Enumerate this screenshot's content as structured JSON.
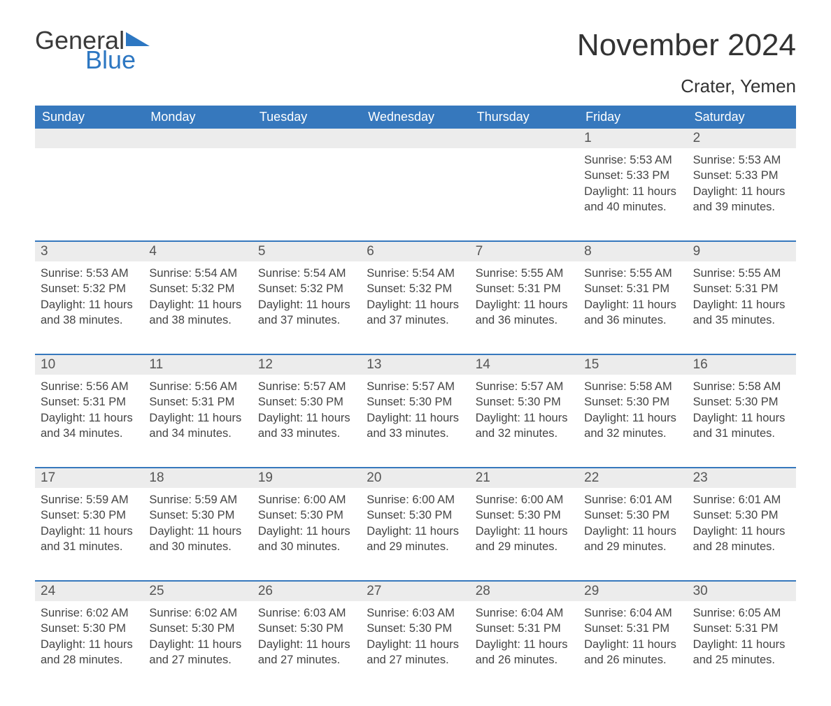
{
  "logo": {
    "general": "General",
    "blue": "Blue"
  },
  "title": "November 2024",
  "location": "Crater, Yemen",
  "colors": {
    "header_bg": "#3678bd",
    "header_text": "#ffffff",
    "daynum_bg": "#ececec",
    "rule": "#3678bd",
    "logo_blue": "#2d77c2",
    "text": "#333333",
    "cell_text": "#444444"
  },
  "day_names": [
    "Sunday",
    "Monday",
    "Tuesday",
    "Wednesday",
    "Thursday",
    "Friday",
    "Saturday"
  ],
  "weeks": [
    {
      "nums": [
        "",
        "",
        "",
        "",
        "",
        "1",
        "2"
      ],
      "data": [
        null,
        null,
        null,
        null,
        null,
        {
          "sunrise": "5:53 AM",
          "sunset": "5:33 PM",
          "daylight": "11 hours and 40 minutes."
        },
        {
          "sunrise": "5:53 AM",
          "sunset": "5:33 PM",
          "daylight": "11 hours and 39 minutes."
        }
      ]
    },
    {
      "nums": [
        "3",
        "4",
        "5",
        "6",
        "7",
        "8",
        "9"
      ],
      "data": [
        {
          "sunrise": "5:53 AM",
          "sunset": "5:32 PM",
          "daylight": "11 hours and 38 minutes."
        },
        {
          "sunrise": "5:54 AM",
          "sunset": "5:32 PM",
          "daylight": "11 hours and 38 minutes."
        },
        {
          "sunrise": "5:54 AM",
          "sunset": "5:32 PM",
          "daylight": "11 hours and 37 minutes."
        },
        {
          "sunrise": "5:54 AM",
          "sunset": "5:32 PM",
          "daylight": "11 hours and 37 minutes."
        },
        {
          "sunrise": "5:55 AM",
          "sunset": "5:31 PM",
          "daylight": "11 hours and 36 minutes."
        },
        {
          "sunrise": "5:55 AM",
          "sunset": "5:31 PM",
          "daylight": "11 hours and 36 minutes."
        },
        {
          "sunrise": "5:55 AM",
          "sunset": "5:31 PM",
          "daylight": "11 hours and 35 minutes."
        }
      ]
    },
    {
      "nums": [
        "10",
        "11",
        "12",
        "13",
        "14",
        "15",
        "16"
      ],
      "data": [
        {
          "sunrise": "5:56 AM",
          "sunset": "5:31 PM",
          "daylight": "11 hours and 34 minutes."
        },
        {
          "sunrise": "5:56 AM",
          "sunset": "5:31 PM",
          "daylight": "11 hours and 34 minutes."
        },
        {
          "sunrise": "5:57 AM",
          "sunset": "5:30 PM",
          "daylight": "11 hours and 33 minutes."
        },
        {
          "sunrise": "5:57 AM",
          "sunset": "5:30 PM",
          "daylight": "11 hours and 33 minutes."
        },
        {
          "sunrise": "5:57 AM",
          "sunset": "5:30 PM",
          "daylight": "11 hours and 32 minutes."
        },
        {
          "sunrise": "5:58 AM",
          "sunset": "5:30 PM",
          "daylight": "11 hours and 32 minutes."
        },
        {
          "sunrise": "5:58 AM",
          "sunset": "5:30 PM",
          "daylight": "11 hours and 31 minutes."
        }
      ]
    },
    {
      "nums": [
        "17",
        "18",
        "19",
        "20",
        "21",
        "22",
        "23"
      ],
      "data": [
        {
          "sunrise": "5:59 AM",
          "sunset": "5:30 PM",
          "daylight": "11 hours and 31 minutes."
        },
        {
          "sunrise": "5:59 AM",
          "sunset": "5:30 PM",
          "daylight": "11 hours and 30 minutes."
        },
        {
          "sunrise": "6:00 AM",
          "sunset": "5:30 PM",
          "daylight": "11 hours and 30 minutes."
        },
        {
          "sunrise": "6:00 AM",
          "sunset": "5:30 PM",
          "daylight": "11 hours and 29 minutes."
        },
        {
          "sunrise": "6:00 AM",
          "sunset": "5:30 PM",
          "daylight": "11 hours and 29 minutes."
        },
        {
          "sunrise": "6:01 AM",
          "sunset": "5:30 PM",
          "daylight": "11 hours and 29 minutes."
        },
        {
          "sunrise": "6:01 AM",
          "sunset": "5:30 PM",
          "daylight": "11 hours and 28 minutes."
        }
      ]
    },
    {
      "nums": [
        "24",
        "25",
        "26",
        "27",
        "28",
        "29",
        "30"
      ],
      "data": [
        {
          "sunrise": "6:02 AM",
          "sunset": "5:30 PM",
          "daylight": "11 hours and 28 minutes."
        },
        {
          "sunrise": "6:02 AM",
          "sunset": "5:30 PM",
          "daylight": "11 hours and 27 minutes."
        },
        {
          "sunrise": "6:03 AM",
          "sunset": "5:30 PM",
          "daylight": "11 hours and 27 minutes."
        },
        {
          "sunrise": "6:03 AM",
          "sunset": "5:30 PM",
          "daylight": "11 hours and 27 minutes."
        },
        {
          "sunrise": "6:04 AM",
          "sunset": "5:31 PM",
          "daylight": "11 hours and 26 minutes."
        },
        {
          "sunrise": "6:04 AM",
          "sunset": "5:31 PM",
          "daylight": "11 hours and 26 minutes."
        },
        {
          "sunrise": "6:05 AM",
          "sunset": "5:31 PM",
          "daylight": "11 hours and 25 minutes."
        }
      ]
    }
  ],
  "labels": {
    "sunrise": "Sunrise: ",
    "sunset": "Sunset: ",
    "daylight": "Daylight: "
  }
}
